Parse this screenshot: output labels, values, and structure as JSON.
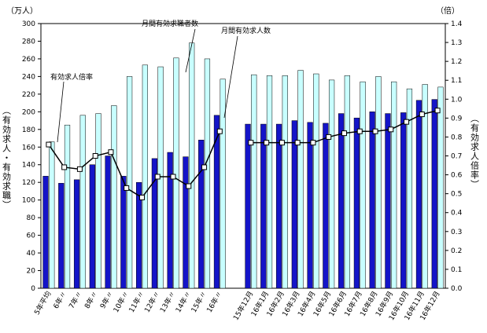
{
  "chart_data": {
    "type": "bar",
    "left_axis": {
      "unit": "（万人）",
      "label": "（有効求人・有効求職）",
      "ylim": [
        0,
        300
      ],
      "step": 20
    },
    "right_axis": {
      "unit": "（倍）",
      "label": "（有効求人倍率）",
      "ylim": [
        0,
        1.4
      ],
      "step": 0.1
    },
    "categories": [
      "5年平均",
      "6年〃",
      "7年〃",
      "8年〃",
      "9年〃",
      "10年〃",
      "11年〃",
      "12年〃",
      "13年〃",
      "14年〃",
      "15年〃",
      "16年〃",
      "",
      "15年12月",
      "16年1月",
      "16年2月",
      "16年3月",
      "16年4月",
      "16年5月",
      "16年6月",
      "16年7月",
      "16年8月",
      "16年9月",
      "16年10月",
      "16年11月",
      "16年12月"
    ],
    "series": [
      {
        "name": "月間有効求職者数",
        "type": "bar",
        "color": "#c8ffff",
        "values": [
          166,
          185,
          196,
          198,
          207,
          240,
          253,
          251,
          261,
          278,
          260,
          237,
          null,
          242,
          241,
          241,
          247,
          243,
          236,
          241,
          234,
          240,
          234,
          226,
          231,
          228
        ]
      },
      {
        "name": "月間有効求人数",
        "type": "bar",
        "color": "#1414c8",
        "values": [
          127,
          119,
          123,
          140,
          150,
          127,
          120,
          147,
          154,
          149,
          168,
          196,
          null,
          186,
          186,
          186,
          190,
          188,
          187,
          198,
          193,
          200,
          198,
          199,
          213,
          214
        ]
      },
      {
        "name": "有効求人倍率",
        "type": "line",
        "color": "#000000",
        "values": [
          0.76,
          0.64,
          0.63,
          0.7,
          0.72,
          0.53,
          0.48,
          0.59,
          0.59,
          0.54,
          0.64,
          0.83,
          null,
          0.77,
          0.77,
          0.77,
          0.77,
          0.77,
          0.8,
          0.82,
          0.83,
          0.83,
          0.84,
          0.88,
          0.92,
          0.94
        ]
      }
    ],
    "annotations": [
      {
        "text": "有効求人倍率",
        "series": "有効求人倍率"
      },
      {
        "text": "月間有効求職者数",
        "series": "月間有効求職者数"
      },
      {
        "text": "月間有効求人数",
        "series": "月間有効求人数"
      }
    ]
  }
}
